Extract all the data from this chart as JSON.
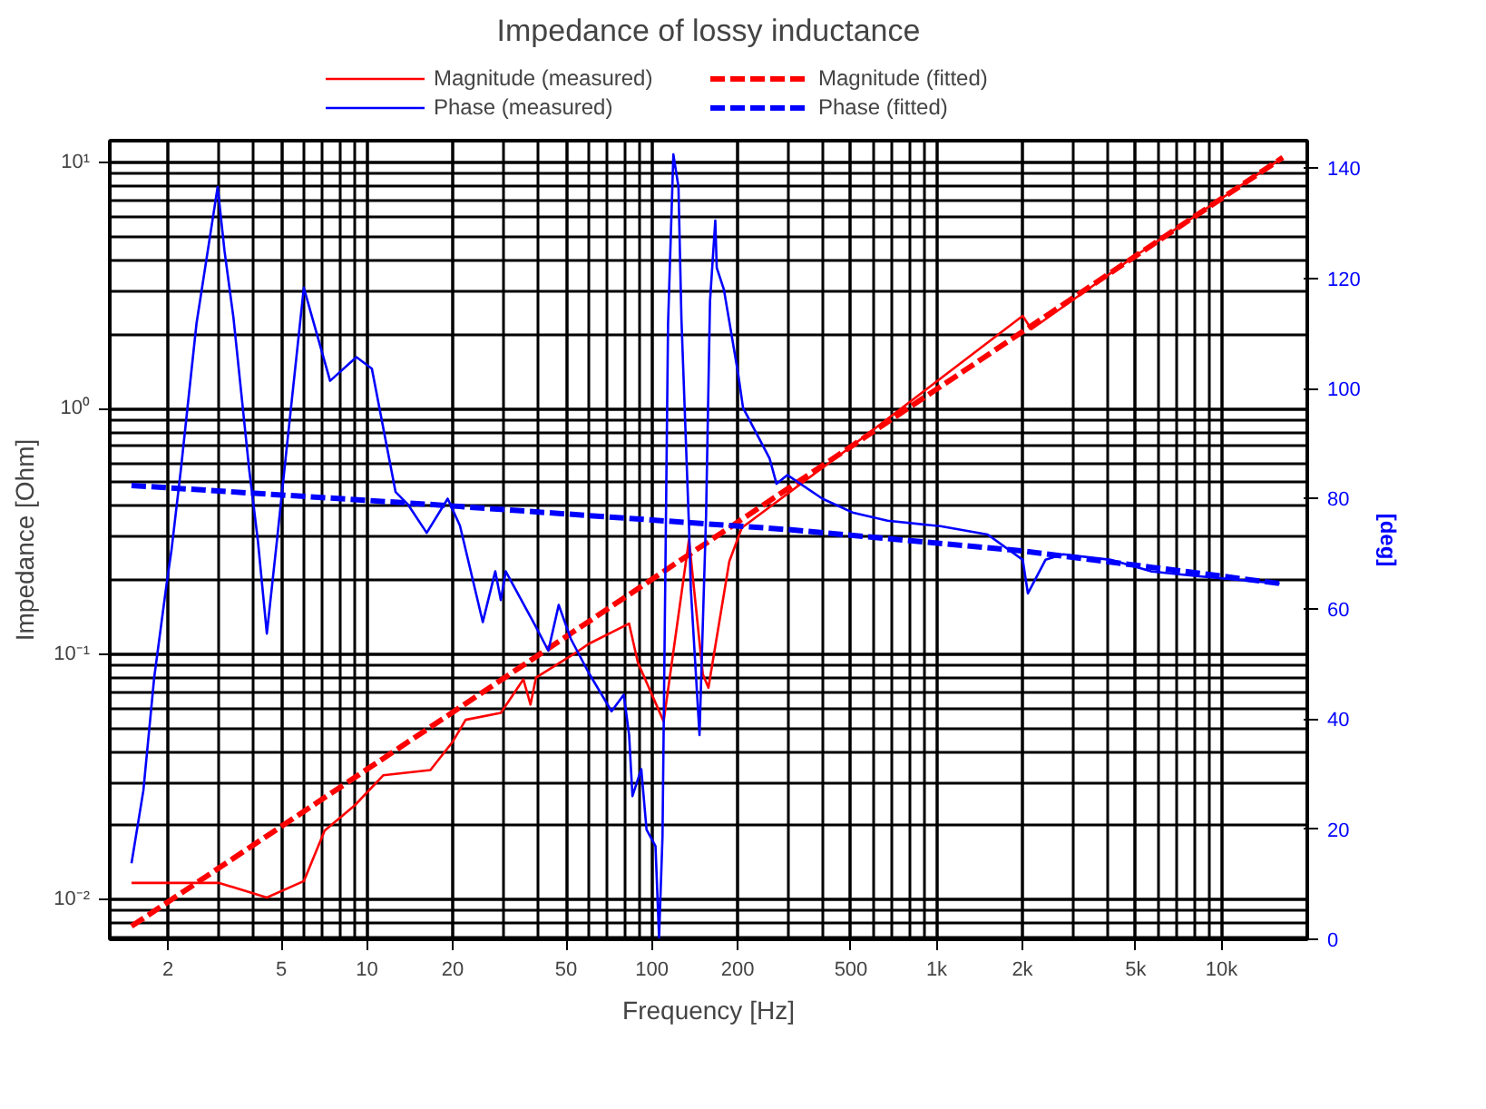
{
  "chart_data": {
    "type": "line",
    "title": "Impedance of lossy inductance",
    "xlabel": "Frequency [Hz]",
    "ylabel": "Impedance [Ohm]",
    "y2label": "[deg]",
    "log": "xy",
    "grid": true,
    "legend": "top",
    "xlim": [
      1.25,
      20000
    ],
    "xticks": [
      2,
      5,
      10,
      20,
      50,
      100,
      200,
      500,
      {
        "value": 1000,
        "label": "1k"
      },
      {
        "value": 2000,
        "label": "2k"
      },
      {
        "value": 5000,
        "label": "5k"
      },
      {
        "value": 10000,
        "label": "10k"
      }
    ],
    "ylim": [
      0.0069,
      12.3
    ],
    "yticks": [
      {
        "value": 0.01,
        "label": "10⁻²"
      },
      {
        "value": 0.1,
        "label": "10⁻¹"
      },
      {
        "value": 1,
        "label": "10⁰"
      },
      {
        "value": 10,
        "label": "10¹"
      }
    ],
    "y2lim": [
      0,
      145
    ],
    "y2ticks": [
      0,
      20,
      40,
      60,
      80,
      100,
      120,
      140
    ],
    "series": [
      {
        "name": "Magnitude (measured)",
        "color": "#ff0000",
        "line_style": "solid",
        "x": [
          1.49,
          3.03,
          4.45,
          6.0,
          7.1,
          9.05,
          11.4,
          16.7,
          20.0,
          22.2,
          29.5,
          35.4,
          37.5,
          39.2,
          54.3,
          60.0,
          83.2,
          89.3,
          110,
          135,
          151,
          158,
          187,
          207,
          506,
          2005,
          2150,
          4910,
          16400
        ],
        "values": [
          0.0117,
          0.0117,
          0.0102,
          0.0119,
          0.0191,
          0.0242,
          0.0321,
          0.0337,
          0.044,
          0.054,
          0.0576,
          0.0789,
          0.0623,
          0.0802,
          0.1016,
          0.11,
          0.133,
          0.0924,
          0.0532,
          0.292,
          0.0827,
          0.073,
          0.238,
          0.327,
          0.706,
          2.38,
          2.1,
          4.13,
          10.5
        ]
      },
      {
        "name": "Magnitude (fitted)",
        "color": "#ff0000",
        "line_style": "dashed",
        "x": [
          1.49,
          29.5,
          506,
          16400
        ],
        "values": [
          0.0078,
          0.0783,
          0.706,
          10.5
        ]
      },
      {
        "name": "Phase (measured)",
        "color": "#0000ff",
        "line_style": "solid",
        "axis": "y2",
        "x": [
          1.49,
          1.64,
          1.79,
          1.98,
          2.06,
          2.22,
          2.52,
          2.99,
          3.16,
          3.4,
          3.86,
          4.14,
          4.45,
          4.84,
          5.2,
          6.0,
          7.42,
          9.18,
          10.4,
          12.6,
          13.9,
          16.2,
          19.2,
          21.2,
          25.5,
          28.2,
          29.5,
          30.7,
          39.2,
          43.3,
          47.1,
          52.0,
          60.0,
          72.2,
          79.7,
          83.2,
          85.5,
          91.8,
          95.8,
          103,
          106,
          109,
          114,
          119,
          124,
          127,
          135,
          137,
          147,
          155,
          160,
          167,
          169,
          179,
          201,
          209,
          259,
          274,
          299,
          397,
          506,
          672,
          1030,
          1510,
          2005,
          2090,
          2410,
          2780,
          4080,
          5660,
          8310,
          16000
        ],
        "values": [
          13.8,
          27,
          47.5,
          64.6,
          70.8,
          85.2,
          111.8,
          136.6,
          125,
          112.7,
          85.2,
          72.3,
          55.5,
          72.9,
          88.2,
          118.3,
          101.4,
          105.7,
          103.6,
          81.2,
          79,
          73.8,
          80,
          75.1,
          57.6,
          66.8,
          61.6,
          66.8,
          56.7,
          52.4,
          60.7,
          54.5,
          48.4,
          41.4,
          44.4,
          37.1,
          26,
          30.9,
          19.9,
          16.9,
          0.3,
          18.7,
          111.8,
          142.5,
          136.6,
          112.7,
          75,
          63.7,
          37.1,
          76.9,
          115.8,
          130.5,
          121.9,
          118,
          102.6,
          96.5,
          87.3,
          82.7,
          84.3,
          80,
          77.5,
          76,
          75,
          73.5,
          68.9,
          62.8,
          68.9,
          69.9,
          68.9,
          66.8,
          65.9,
          64.6
        ]
      },
      {
        "name": "Phase (fitted)",
        "color": "#0000ff",
        "line_style": "dashed",
        "axis": "y2",
        "x": [
          1.49,
          16.2,
          299,
          2005,
          16000
        ],
        "values": [
          82.4,
          79,
          74.4,
          70.5,
          64.6
        ]
      }
    ]
  }
}
